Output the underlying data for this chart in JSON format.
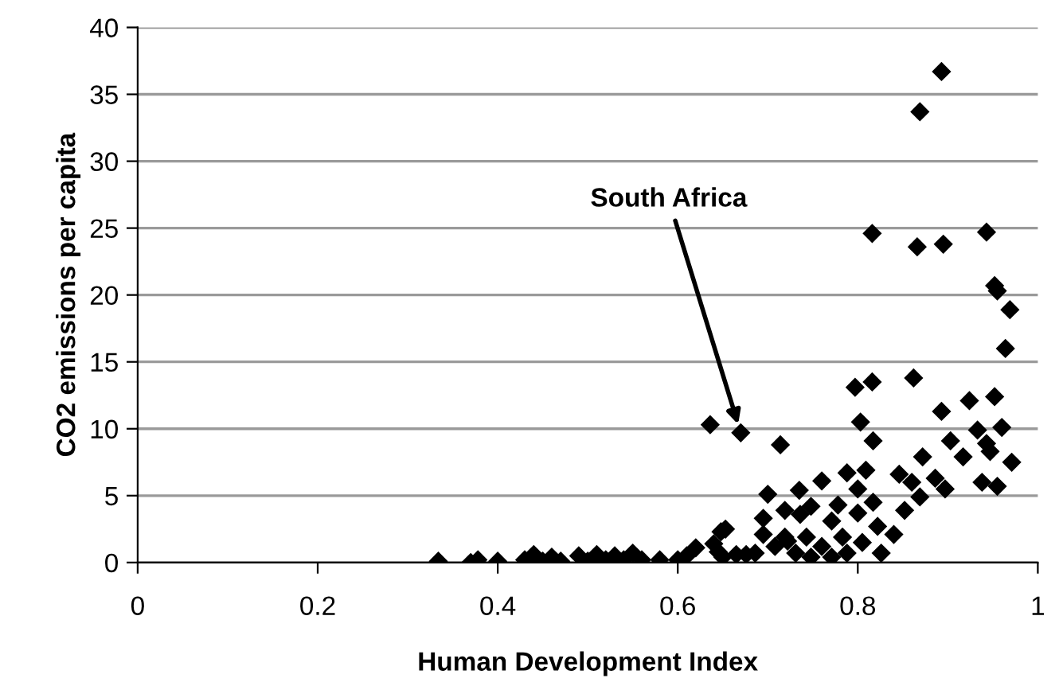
{
  "chart_data": {
    "type": "scatter",
    "xlabel": "Human Development Index",
    "ylabel": "CO2 emissions per capita",
    "x": [
      0.334,
      0.37,
      0.378,
      0.4,
      0.43,
      0.44,
      0.45,
      0.46,
      0.47,
      0.49,
      0.5,
      0.51,
      0.52,
      0.53,
      0.54,
      0.55,
      0.56,
      0.58,
      0.6,
      0.61,
      0.62,
      0.64,
      0.645,
      0.648,
      0.65,
      0.653,
      0.636,
      0.67,
      0.714,
      0.7,
      0.735,
      0.955,
      0.969,
      0.964,
      0.797,
      0.816,
      0.862,
      0.893,
      0.924,
      0.952,
      0.803,
      0.817,
      0.872,
      0.903,
      0.917,
      0.933,
      0.943,
      0.96,
      0.971,
      0.938,
      0.955,
      0.947,
      0.897,
      0.886,
      0.86,
      0.869,
      0.846,
      0.852,
      0.84,
      0.817,
      0.8,
      0.788,
      0.809,
      0.8,
      0.778,
      0.76,
      0.736,
      0.719,
      0.748,
      0.771,
      0.783,
      0.76,
      0.731,
      0.743,
      0.805,
      0.822,
      0.826,
      0.788,
      0.771,
      0.748,
      0.719,
      0.893,
      0.869,
      0.816,
      0.866,
      0.895,
      0.943,
      0.952,
      0.695,
      0.686,
      0.676,
      0.665,
      0.695,
      0.708,
      0.722
    ],
    "values": [
      0.1,
      0,
      0.2,
      0.1,
      0.2,
      0.6,
      0.1,
      0.4,
      0.1,
      0.5,
      0.1,
      0.6,
      0.2,
      0.5,
      0.2,
      0.7,
      0.2,
      0.2,
      0.2,
      0.5,
      1.1,
      1.4,
      0.8,
      2.3,
      0.4,
      2.5,
      10.3,
      9.7,
      8.8,
      5.1,
      5.4,
      20.3,
      18.9,
      16.0,
      13.1,
      13.5,
      13.8,
      11.3,
      12.1,
      12.4,
      10.5,
      9.1,
      7.9,
      9.1,
      7.9,
      9.9,
      8.9,
      10.1,
      7.5,
      6.0,
      5.7,
      8.3,
      5.5,
      6.3,
      6.0,
      4.9,
      6.6,
      3.9,
      2.1,
      4.5,
      5.5,
      6.7,
      6.9,
      3.7,
      4.3,
      6.1,
      3.6,
      3.9,
      4.2,
      3.1,
      1.9,
      1.2,
      0.7,
      1.9,
      1.5,
      2.7,
      0.7,
      0.7,
      0.4,
      0.4,
      1.9,
      36.7,
      33.7,
      24.6,
      23.6,
      23.8,
      24.7,
      20.7,
      2.1,
      0.7,
      0.6,
      0.6,
      3.3,
      1.2,
      1.6
    ],
    "color": "#000000",
    "marker": "diamond",
    "xlim": [
      0,
      1
    ],
    "xticks": [
      0,
      0.2,
      0.4,
      0.6,
      0.8,
      1
    ],
    "ylim": [
      0,
      40
    ],
    "yticks": [
      0,
      5,
      10,
      15,
      20,
      25,
      30,
      35,
      40
    ],
    "grid": "y",
    "legend": false,
    "annotations": [
      {
        "text": "South Africa",
        "x": 0.67,
        "y": 9.7
      }
    ]
  }
}
